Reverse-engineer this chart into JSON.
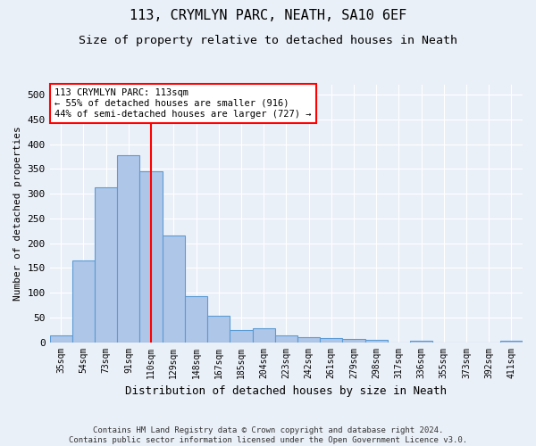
{
  "title": "113, CRYMLYN PARC, NEATH, SA10 6EF",
  "subtitle": "Size of property relative to detached houses in Neath",
  "xlabel": "Distribution of detached houses by size in Neath",
  "ylabel": "Number of detached properties",
  "footer_line1": "Contains HM Land Registry data © Crown copyright and database right 2024.",
  "footer_line2": "Contains public sector information licensed under the Open Government Licence v3.0.",
  "bar_labels": [
    "35sqm",
    "54sqm",
    "73sqm",
    "91sqm",
    "110sqm",
    "129sqm",
    "148sqm",
    "167sqm",
    "185sqm",
    "204sqm",
    "223sqm",
    "242sqm",
    "261sqm",
    "279sqm",
    "298sqm",
    "317sqm",
    "336sqm",
    "355sqm",
    "373sqm",
    "392sqm",
    "411sqm"
  ],
  "bar_values": [
    13,
    165,
    313,
    377,
    345,
    215,
    93,
    54,
    24,
    28,
    14,
    10,
    9,
    6,
    5,
    0,
    3,
    0,
    0,
    0,
    2
  ],
  "bar_color": "#aec6e8",
  "bar_edge_color": "#5b9bd5",
  "red_line_index": 4,
  "annotation_text": "113 CRYMLYN PARC: 113sqm\n← 55% of detached houses are smaller (916)\n44% of semi-detached houses are larger (727) →",
  "annotation_box_color": "white",
  "annotation_box_edge": "red",
  "ylim": [
    0,
    520
  ],
  "yticks": [
    0,
    50,
    100,
    150,
    200,
    250,
    300,
    350,
    400,
    450,
    500
  ],
  "bg_color": "#eaf0f8",
  "plot_bg_color": "#eaf0f8",
  "grid_color": "#ffffff",
  "title_fontsize": 11,
  "subtitle_fontsize": 9.5
}
